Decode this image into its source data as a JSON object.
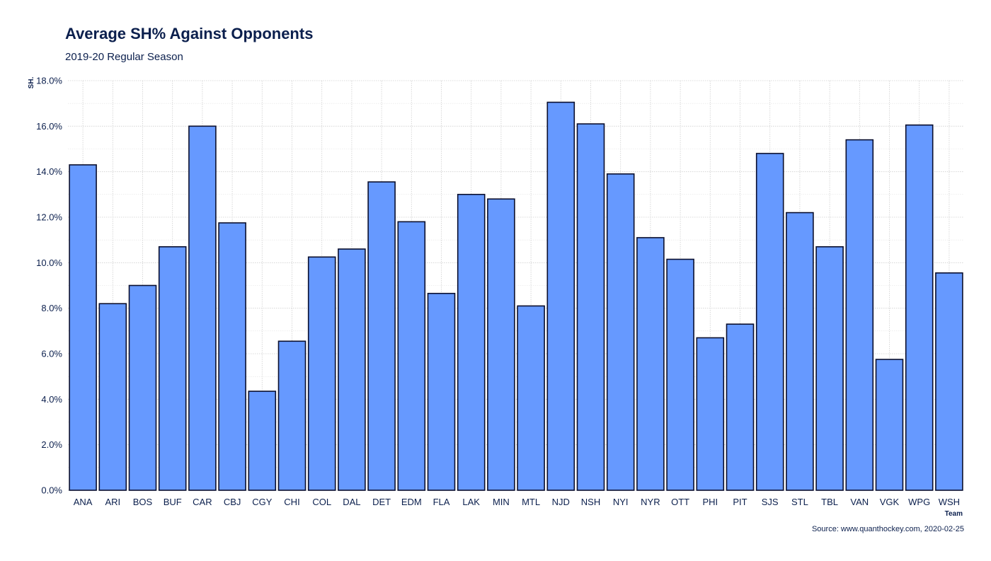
{
  "chart_data": {
    "type": "bar",
    "title": "Average SH% Against Opponents",
    "subtitle": "2019-20 Regular Season",
    "xlabel": "Team",
    "ylabel": "SH.",
    "source": "Source: www.quanthockey.com, 2020-02-25",
    "ylim": [
      0,
      18
    ],
    "yticks": [
      0,
      2,
      4,
      6,
      8,
      10,
      12,
      14,
      16,
      18
    ],
    "ytick_labels": [
      "0.0%",
      "2.0%",
      "4.0%",
      "6.0%",
      "8.0%",
      "10.0%",
      "12.0%",
      "14.0%",
      "16.0%",
      "18.0%"
    ],
    "grid": true,
    "legend": "none",
    "bar_color": "#6699ff",
    "bar_edge_color": "#0a0f2e",
    "categories": [
      "ANA",
      "ARI",
      "BOS",
      "BUF",
      "CAR",
      "CBJ",
      "CGY",
      "CHI",
      "COL",
      "DAL",
      "DET",
      "EDM",
      "FLA",
      "LAK",
      "MIN",
      "MTL",
      "NJD",
      "NSH",
      "NYI",
      "NYR",
      "OTT",
      "PHI",
      "PIT",
      "SJS",
      "STL",
      "TBL",
      "VAN",
      "VGK",
      "WPG",
      "WSH"
    ],
    "values": [
      14.3,
      8.2,
      9.0,
      10.7,
      16.0,
      11.75,
      4.35,
      6.55,
      10.25,
      10.6,
      13.55,
      11.8,
      8.65,
      13.0,
      12.8,
      8.1,
      17.05,
      16.1,
      13.9,
      11.1,
      10.15,
      6.7,
      7.3,
      14.8,
      12.2,
      10.7,
      15.4,
      5.75,
      16.05,
      9.55
    ]
  }
}
